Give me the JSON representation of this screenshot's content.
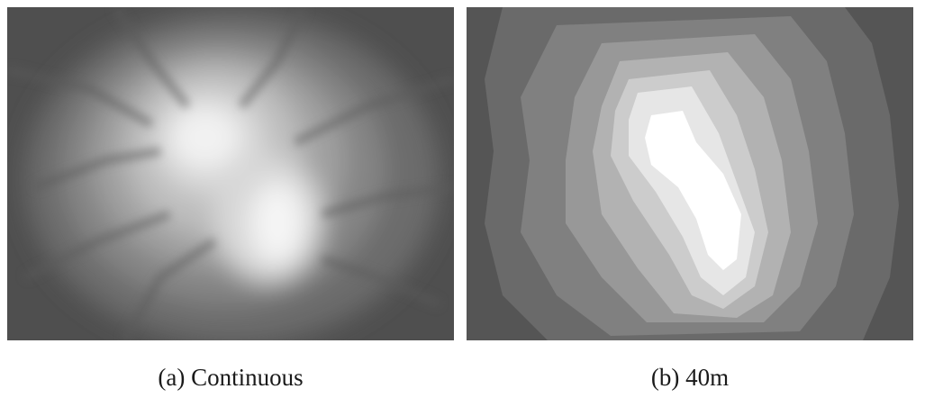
{
  "panels": [
    {
      "id": "a",
      "caption": "(a) Continuous"
    },
    {
      "id": "b",
      "caption": "(b) 40m"
    }
  ],
  "colors": {
    "background": "#ffffff",
    "caption_text": "#1a1a1a",
    "terrain_low": "#4f4f4f",
    "terrain_high": "#ffffff",
    "classes": [
      "#555555",
      "#6a6a6a",
      "#808080",
      "#989898",
      "#b2b2b2",
      "#cccccc",
      "#e6e6e6",
      "#ffffff"
    ]
  }
}
